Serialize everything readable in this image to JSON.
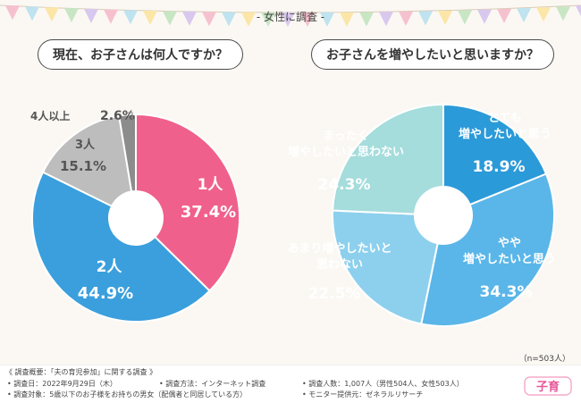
{
  "header": {
    "title": "-  女性に調査  -"
  },
  "chart_data": [
    {
      "type": "pie",
      "title": "現在、お子さんは何人ですか？",
      "slices": [
        {
          "label": "1人",
          "value": 37.4,
          "value_text": "37.4%",
          "color": "#f0608c"
        },
        {
          "label": "2人",
          "value": 44.9,
          "value_text": "44.9%",
          "color": "#3a9fdc"
        },
        {
          "label": "3人",
          "value": 15.1,
          "value_text": "15.1%",
          "color": "#bdbdbd"
        },
        {
          "label": "4人以上",
          "value": 2.6,
          "value_text": "2.6%",
          "color": "#8c8c8c"
        }
      ]
    },
    {
      "type": "pie",
      "title": "お子さんを増やしたいと思いますか？",
      "slices": [
        {
          "label": "とても\n増やしたいと思う",
          "value": 18.9,
          "value_text": "18.9%",
          "color": "#2b9ad8"
        },
        {
          "label": "やや\n増やしたいと思う",
          "value": 34.3,
          "value_text": "34.3%",
          "color": "#5ab6e8"
        },
        {
          "label": "あまり増やしたいと\n思わない",
          "value": 22.5,
          "value_text": "22.5%",
          "color": "#8dd0ed"
        },
        {
          "label": "まったく\n増やしたいと思わない",
          "value": 24.3,
          "value_text": "24.3%",
          "color": "#a5dcdc"
        }
      ]
    }
  ],
  "sample_note": "（n=503人）",
  "footer": {
    "overview": "《 調査概要：「夫の育児参加」に関する調査 》",
    "date": "• 調査日：2022年9月29日（木）",
    "method": "• 調査方法：インターネット調査",
    "count": "• 調査人数：1,007人（男性504人、女性503人）",
    "target": "• 調査対象：5歳以下のお子様をお持ちの男女（配偶者と同居している方）",
    "provider": "• モニター提供元：ゼネラルリサーチ"
  },
  "logo": {
    "text": "子育"
  }
}
